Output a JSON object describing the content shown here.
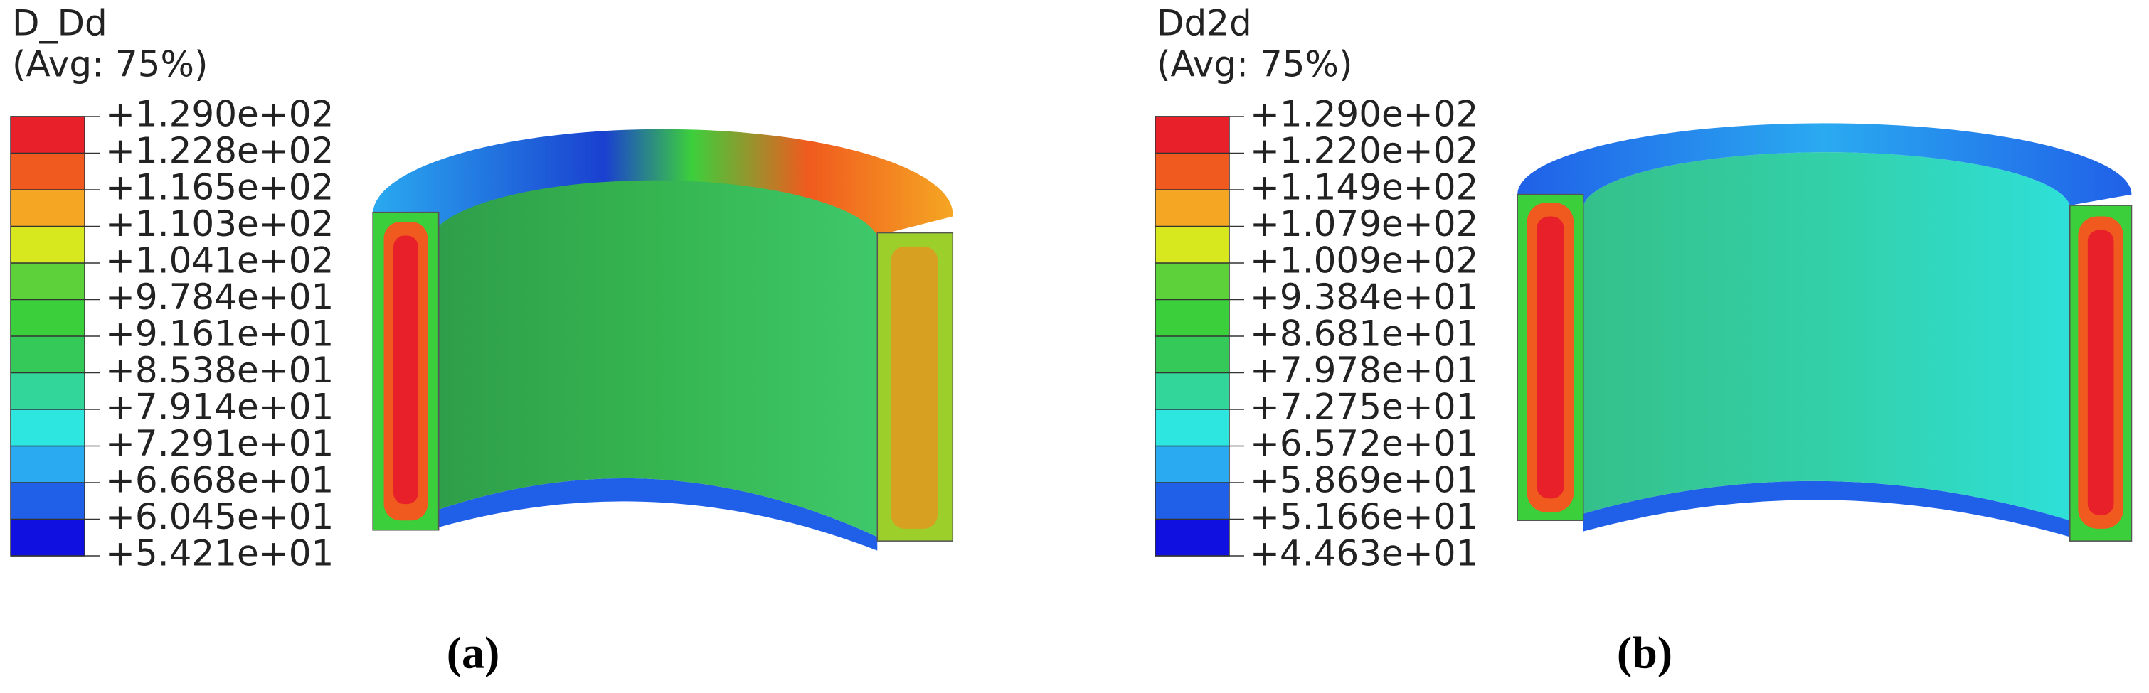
{
  "panels": [
    {
      "caption": "(a)",
      "legend": {
        "title": "D_Dd",
        "subtitle": "(Avg: 75%)",
        "labels": [
          "+1.290e+02",
          "+1.228e+02",
          "+1.165e+02",
          "+1.103e+02",
          "+1.041e+02",
          "+9.784e+01",
          "+9.161e+01",
          "+8.538e+01",
          "+7.914e+01",
          "+7.291e+01",
          "+6.668e+01",
          "+6.045e+01",
          "+5.421e+01"
        ],
        "colors": [
          "#e8202a",
          "#f05a1e",
          "#f5a623",
          "#d8e81e",
          "#5cd13a",
          "#3ccf3c",
          "#35c95a",
          "#33d69a",
          "#2ee6e0",
          "#2aaaf0",
          "#2060e8",
          "#1010e0"
        ]
      }
    },
    {
      "caption": "(b)",
      "legend": {
        "title": "Dd2d",
        "subtitle": "(Avg: 75%)",
        "labels": [
          "+1.290e+02",
          "+1.220e+02",
          "+1.149e+02",
          "+1.079e+02",
          "+1.009e+02",
          "+9.384e+01",
          "+8.681e+01",
          "+7.978e+01",
          "+7.275e+01",
          "+6.572e+01",
          "+5.869e+01",
          "+5.166e+01",
          "+4.463e+01"
        ],
        "colors": [
          "#e8202a",
          "#f05a1e",
          "#f5a623",
          "#d8e81e",
          "#5cd13a",
          "#3ccf3c",
          "#35c95a",
          "#33d69a",
          "#2ee6e0",
          "#2aaaf0",
          "#2060e8",
          "#1010e0"
        ]
      }
    }
  ]
}
